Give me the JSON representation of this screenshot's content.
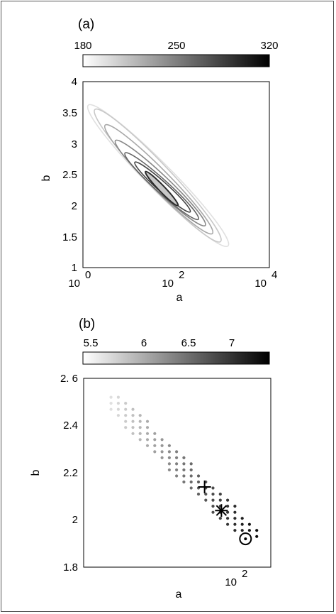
{
  "chart_data": [
    {
      "panel_label": "(a)",
      "type": "contour",
      "xlabel": "a",
      "ylabel": "b",
      "x_scale": "log",
      "xlim": [
        1,
        10000
      ],
      "ylim": [
        1,
        4
      ],
      "x_tick_bases": [
        "10",
        "10",
        "10"
      ],
      "x_tick_exponents": [
        "0",
        "2",
        "4"
      ],
      "y_ticks": [
        "1",
        "1.5",
        "2",
        "2.5",
        "3",
        "3.5",
        "4"
      ],
      "colorbar": {
        "range": [
          180,
          320
        ],
        "ticks": [
          "180",
          "250",
          "320"
        ],
        "colormap": "white-to-black"
      },
      "contours": [
        {
          "level": 200,
          "center": [
            50,
            2.3
          ],
          "a_range": [
            1.3,
            1300
          ],
          "b_range": [
            1.35,
            3.62
          ],
          "color": "#e0e0e0"
        },
        {
          "level": 220,
          "center": [
            50,
            2.3
          ],
          "a_range": [
            1.8,
            900
          ],
          "b_range": [
            1.42,
            3.55
          ],
          "color": "#c8c8c8"
        },
        {
          "level": 240,
          "center": [
            50,
            2.3
          ],
          "a_range": [
            3,
            600
          ],
          "b_range": [
            1.55,
            3.3
          ],
          "color": "#a8a8a8"
        },
        {
          "level": 260,
          "center": [
            50,
            2.3
          ],
          "a_range": [
            5,
            420
          ],
          "b_range": [
            1.68,
            3.05
          ],
          "color": "#888888"
        },
        {
          "level": 280,
          "center": [
            50,
            2.3
          ],
          "a_range": [
            8,
            300
          ],
          "b_range": [
            1.78,
            2.85
          ],
          "color": "#666666"
        },
        {
          "level": 300,
          "center": [
            50,
            2.3
          ],
          "a_range": [
            13,
            200
          ],
          "b_range": [
            1.9,
            2.7
          ],
          "color": "#444444"
        },
        {
          "level": 315,
          "center": [
            50,
            2.3
          ],
          "a_range": [
            22,
            110
          ],
          "b_range": [
            2.0,
            2.55
          ],
          "color": "#2a2a2a",
          "fill": "#c8c8c8"
        }
      ]
    },
    {
      "panel_label": "(b)",
      "type": "scatter",
      "xlabel": "a",
      "ylabel": "b",
      "x_scale": "log",
      "xlim": [
        10,
        160
      ],
      "ylim": [
        1.8,
        2.6
      ],
      "x_tick_base": "10",
      "x_tick_exponent": "2",
      "y_ticks": [
        "1.8",
        "2",
        "2.2",
        "2.4",
        "2. 6"
      ],
      "y_tick_values": [
        1.8,
        2.0,
        2.2,
        2.4,
        2.6
      ],
      "colorbar": {
        "range": [
          5.3,
          7.5
        ],
        "ticks": [
          "5.5",
          "6",
          "6.5",
          "7"
        ],
        "colormap": "white-to-black"
      },
      "grid_dots": {
        "a_range": [
          15,
          130
        ],
        "b_range": [
          1.93,
          2.52
        ],
        "count_a": 21,
        "count_b": 24,
        "ridge": {
          "a_low": 16,
          "b_at_low": 2.49,
          "a_high": 112,
          "b_at_high": 1.95
        },
        "band_half_width_b": 0.06,
        "value_range": [
          5.4,
          7.4
        ]
      },
      "markers": [
        {
          "name": "plus",
          "a": 60,
          "b": 2.14
        },
        {
          "name": "asterisk",
          "a": 77,
          "b": 2.04
        },
        {
          "name": "circle-dot",
          "a": 110,
          "b": 1.92
        }
      ]
    }
  ]
}
